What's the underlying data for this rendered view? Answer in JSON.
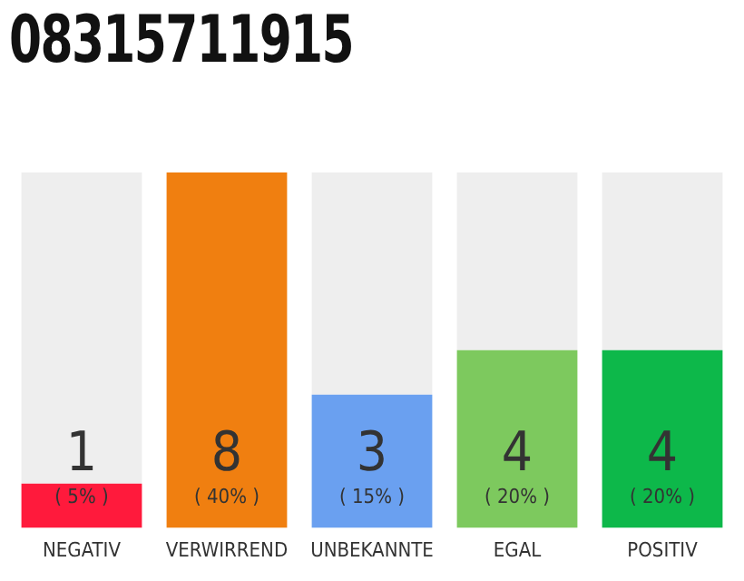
{
  "chart_data": {
    "type": "bar",
    "title": "08315711915",
    "categories": [
      "NEGATIV",
      "VERWIRREND",
      "UNBEKANNTE",
      "EGAL",
      "POSITIV"
    ],
    "stacked": true,
    "series": [
      {
        "colors": [
          "#ff1a3c",
          "#f07f10",
          "#6aa0f0",
          "#7dc95e",
          "#0db84a"
        ],
        "values": [
          1,
          8,
          3,
          4,
          4
        ],
        "value_labels": [
          "1",
          "8",
          "3",
          "4",
          "4"
        ]
      },
      {
        "color": "#eeeeee",
        "values": [
          7,
          0,
          5,
          4,
          4
        ]
      }
    ],
    "ylim": [
      0,
      8
    ],
    "tick_labels": "x",
    "grid": false,
    "legend": false,
    "annotations": [
      "( 5% )",
      "( 40% )",
      "( 15% )",
      "( 20% )",
      "( 20% )"
    ]
  }
}
